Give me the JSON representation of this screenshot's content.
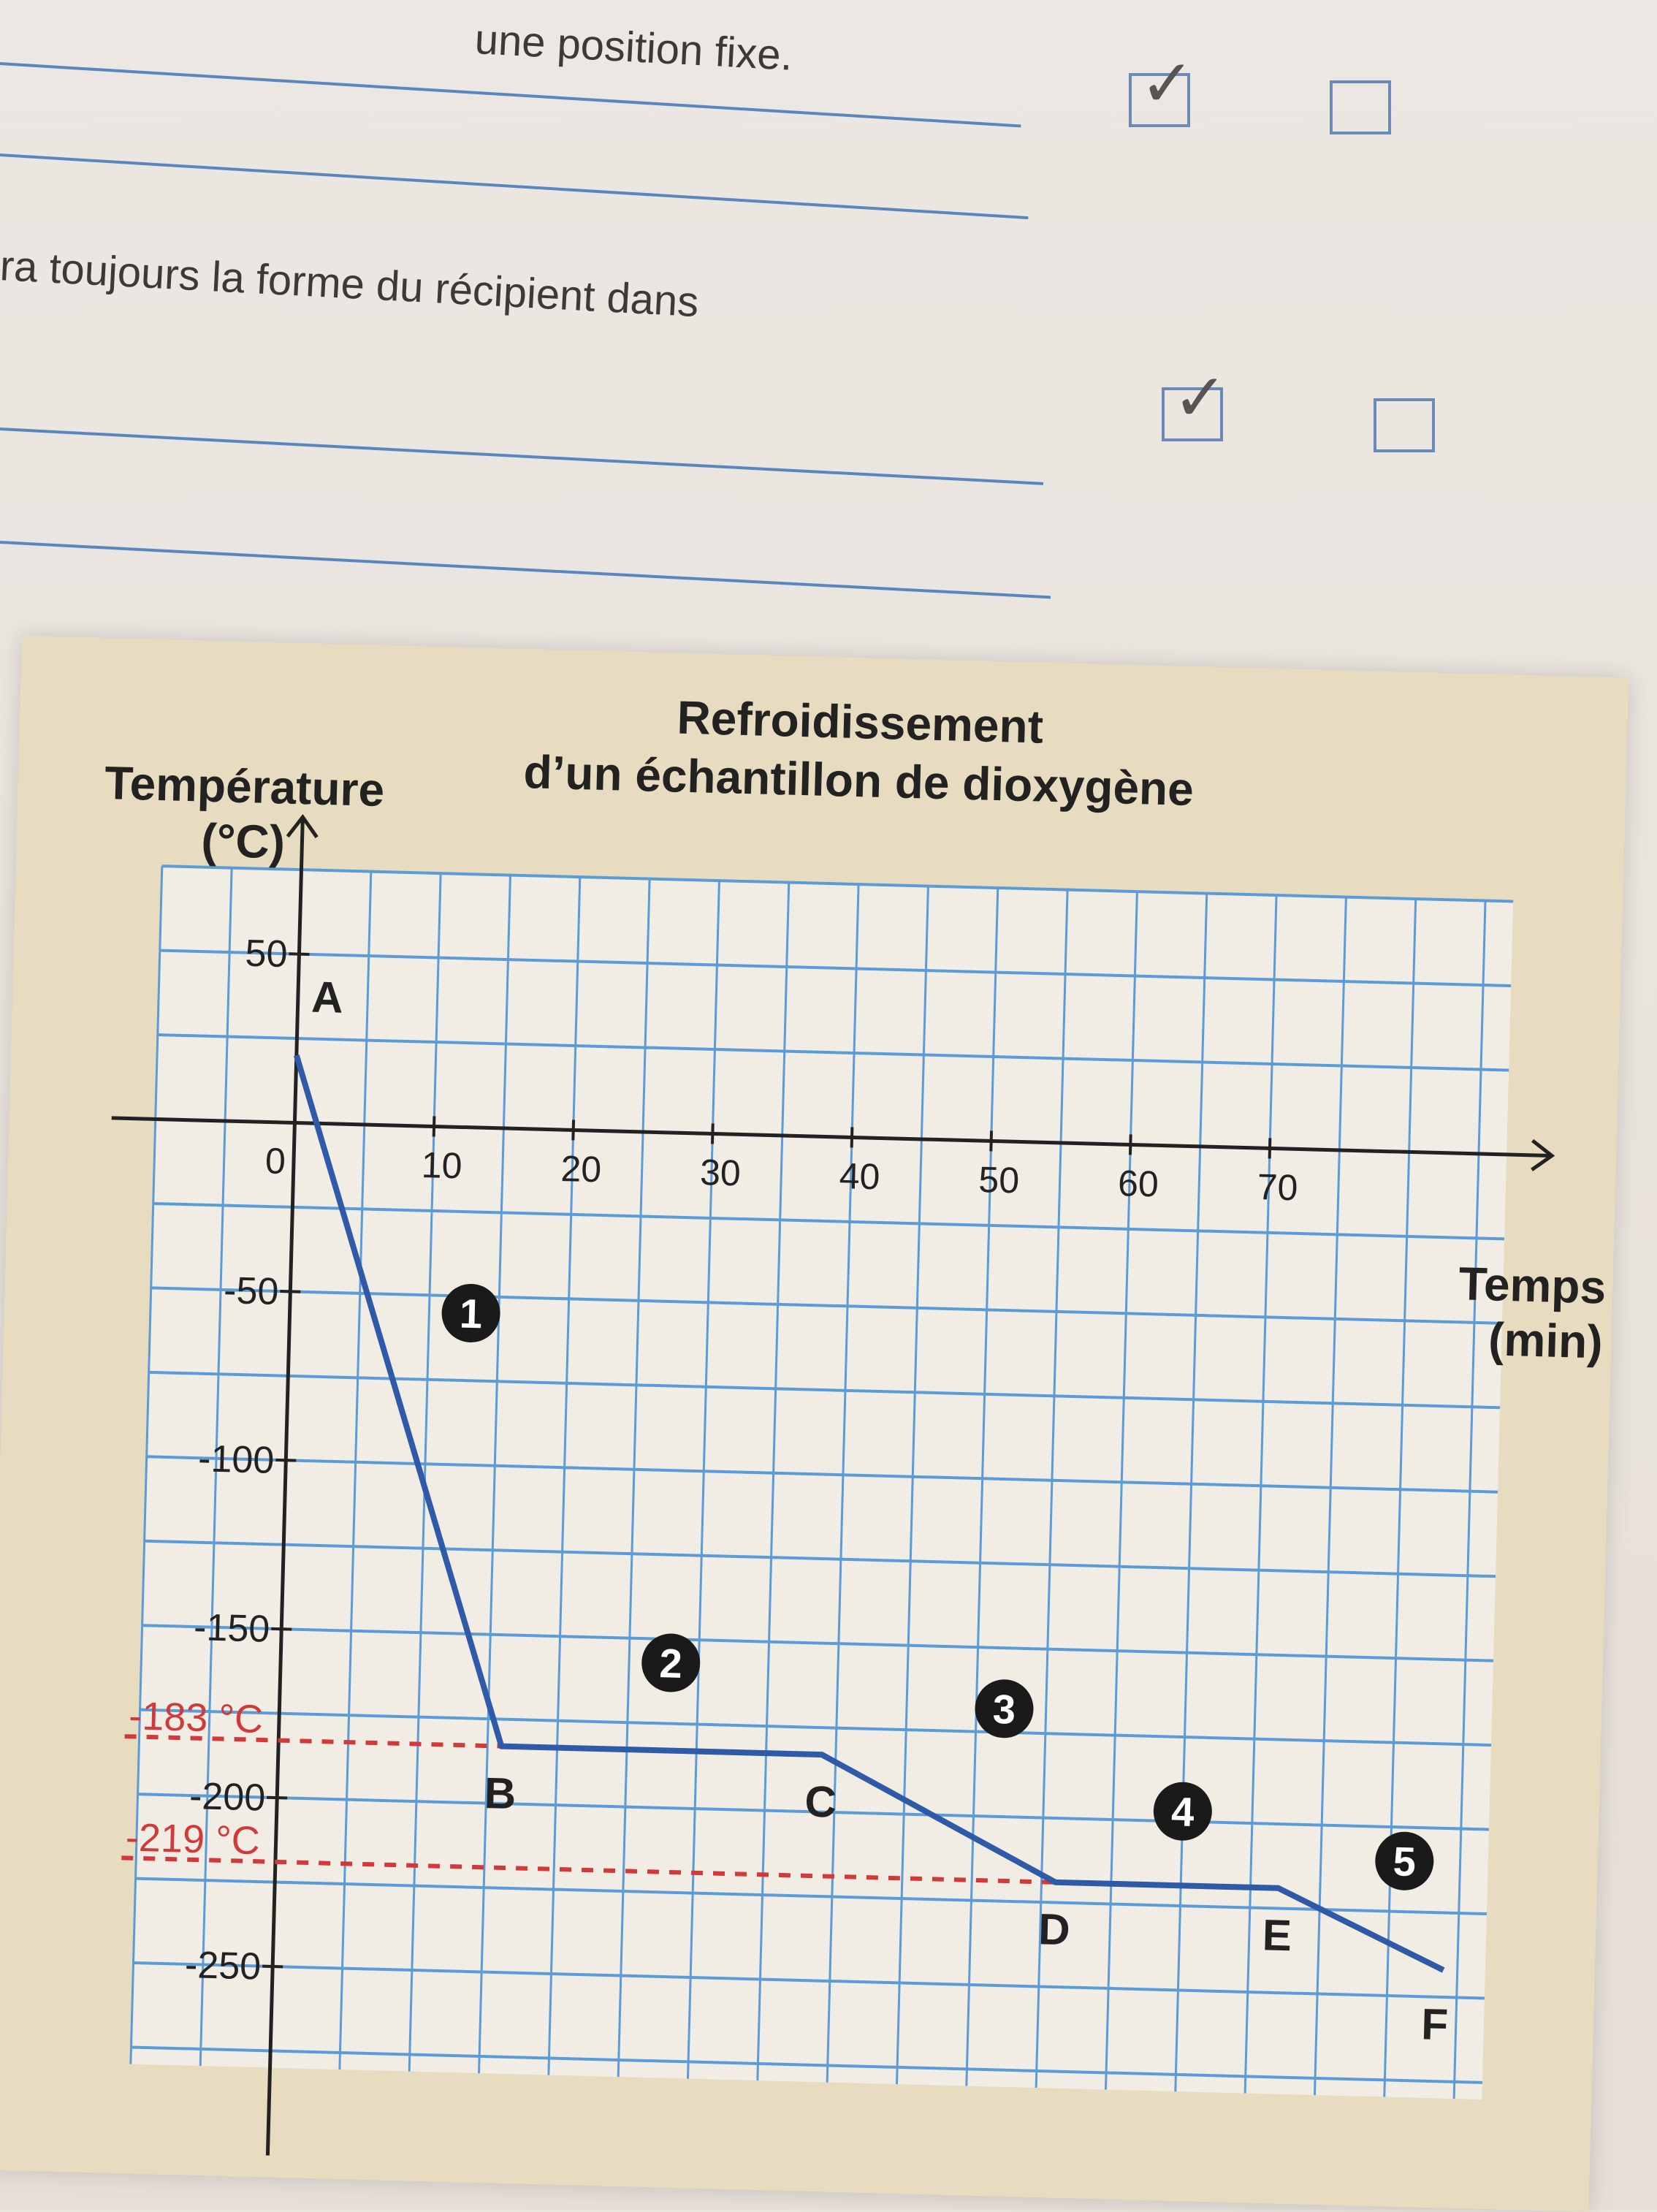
{
  "page": {
    "fragment1": "une position fixe.",
    "fragment2": "ra toujours la forme du récipient dans",
    "checkboxes": [
      {
        "row": 1,
        "true_checked": true,
        "false_checked": false
      },
      {
        "row": 2,
        "true_checked": true,
        "false_checked": false
      }
    ],
    "check_glyph": "✓"
  },
  "chart_data": {
    "type": "line",
    "title": "Refroidissement d’un échantillon de dioxygène",
    "title_line1": "Refroidissement",
    "title_line2": "d’un échantillon de dioxygène",
    "ylabel_line1": "Température",
    "ylabel_line2": "(°C)",
    "xlabel_line1": "Temps",
    "xlabel_line2": "(min)",
    "xlim": [
      -10,
      75
    ],
    "ylim": [
      -280,
      75
    ],
    "x_ticks": [
      0,
      10,
      20,
      30,
      40,
      50,
      60,
      70
    ],
    "y_ticks": [
      50,
      -50,
      -100,
      -150,
      -200,
      -250
    ],
    "grid": true,
    "grid_step_x": 5,
    "grid_step_y": 25,
    "series_color": "#2f5aa8",
    "grid_color": "#5b9bd8",
    "reference_color": "#d23a3a",
    "points": [
      {
        "label": "A",
        "x": 0,
        "y": 20
      },
      {
        "label": "B",
        "x": 16,
        "y": -183
      },
      {
        "label": "C",
        "x": 39,
        "y": -183
      },
      {
        "label": "D",
        "x": 56,
        "y": -219
      },
      {
        "label": "E",
        "x": 72,
        "y": -219
      },
      {
        "label": "F",
        "x": 84,
        "y": -242
      }
    ],
    "reference_lines": [
      {
        "y": -183,
        "label": "-183 °C"
      },
      {
        "y": -219,
        "label": "-219 °C"
      }
    ],
    "phases": [
      {
        "number": "1",
        "x": 13,
        "y": -55
      },
      {
        "number": "2",
        "x": 28,
        "y": -157
      },
      {
        "number": "3",
        "x": 52,
        "y": -168
      },
      {
        "number": "4",
        "x": 65,
        "y": -197
      },
      {
        "number": "5",
        "x": 81,
        "y": -210
      }
    ]
  }
}
